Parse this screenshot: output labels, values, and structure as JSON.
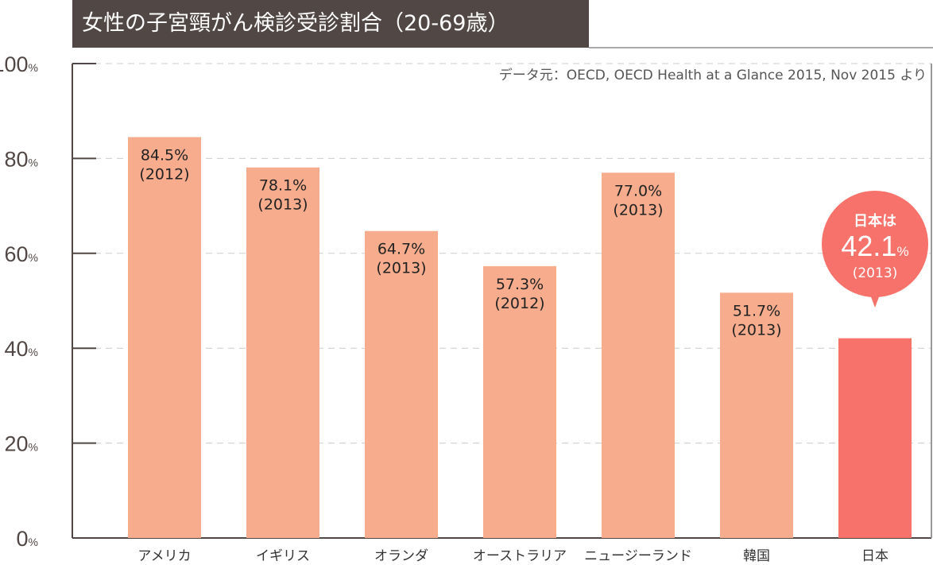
{
  "chart_data": {
    "type": "bar",
    "title": "女性の子宮頸がん検診受診割合（20-69歳）",
    "source": "データ元：OECD, OECD Health at a Glance 2015, Nov 2015 より",
    "categories": [
      "アメリカ",
      "イギリス",
      "オランダ",
      "オーストラリア",
      "ニュージーランド",
      "韓国",
      "日本"
    ],
    "values": [
      84.5,
      78.1,
      64.7,
      57.3,
      77.0,
      51.7,
      42.1
    ],
    "value_labels": [
      "84.5%",
      "78.1%",
      "64.7%",
      "57.3%",
      "77.0%",
      "51.7%",
      "42.1"
    ],
    "years": [
      "(2012)",
      "(2013)",
      "(2013)",
      "(2012)",
      "(2013)",
      "(2013)",
      "(2013)"
    ],
    "yticks": [
      0,
      20,
      40,
      60,
      80,
      100
    ],
    "ytick_unit": "%",
    "ylim": [
      0,
      100
    ],
    "grid": true,
    "highlight": {
      "index": 6,
      "prefix": "日本は",
      "value": "42.1",
      "unit": "%",
      "year": "(2013)"
    },
    "colors": {
      "bar": "#f6ac8d",
      "highlight": "#f7726a",
      "header": "#514845",
      "axis": "#514845"
    }
  }
}
